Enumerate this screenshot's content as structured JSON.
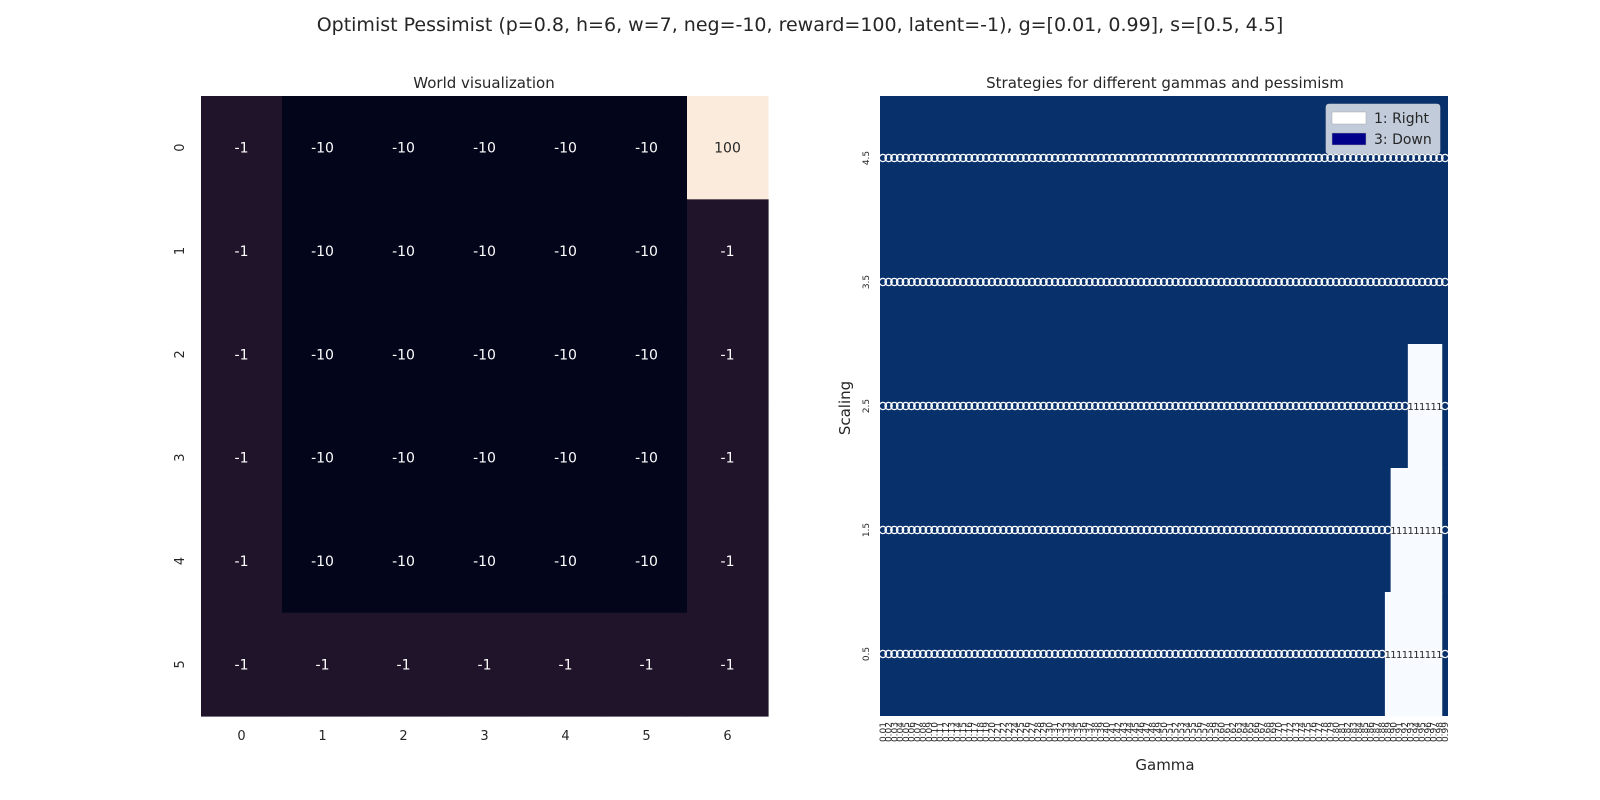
{
  "suptitle": "Optimist Pessimist (p=0.8, h=6, w=7, neg=-10, reward=100, latent=-1), g=[0.01, 0.99], s=[0.5, 4.5]",
  "chart_data": [
    {
      "type": "heatmap",
      "title": "World visualization",
      "xlabel": "",
      "ylabel": "",
      "x_ticks": [
        "0",
        "1",
        "2",
        "3",
        "4",
        "5",
        "6"
      ],
      "y_ticks": [
        "0",
        "1",
        "2",
        "3",
        "4",
        "5"
      ],
      "values": [
        [
          -1,
          -10,
          -10,
          -10,
          -10,
          -10,
          100
        ],
        [
          -1,
          -10,
          -10,
          -10,
          -10,
          -10,
          -1
        ],
        [
          -1,
          -10,
          -10,
          -10,
          -10,
          -10,
          -1
        ],
        [
          -1,
          -10,
          -10,
          -10,
          -10,
          -10,
          -1
        ],
        [
          -1,
          -10,
          -10,
          -10,
          -10,
          -10,
          -1
        ],
        [
          -1,
          -1,
          -1,
          -1,
          -1,
          -1,
          -1
        ]
      ],
      "colors": {
        "-10": "#03051a",
        "-1": "#1f1429",
        "100": "#faebdd"
      },
      "grid": false
    },
    {
      "type": "heatmap",
      "title": "Strategies for different gammas and pessimism",
      "xlabel": "Gamma",
      "ylabel": "Scaling",
      "gamma": {
        "start": 0.01,
        "stop": 0.99,
        "count": 99
      },
      "y_ticks": [
        "4.5",
        "3.5",
        "2.5",
        "1.5",
        "0.5"
      ],
      "annotated_rows": [
        4.5,
        3.5,
        2.5,
        1.5,
        0.5
      ],
      "right_regions": [
        {
          "scaling": 0.5,
          "gamma_from": 0.89,
          "gamma_to": 0.98
        },
        {
          "scaling": 1.5,
          "gamma_from": 0.9,
          "gamma_to": 0.98
        },
        {
          "scaling": 2.5,
          "gamma_from": 0.93,
          "gamma_to": 0.98
        }
      ],
      "legend": [
        {
          "label": "1: Right",
          "color": "#ffffff"
        },
        {
          "label": "3: Down",
          "color": "#00008b"
        }
      ],
      "legend_position": "top-right",
      "colors": {
        "right": "#f7fbff",
        "down": "#08306b"
      },
      "grid": false
    }
  ]
}
